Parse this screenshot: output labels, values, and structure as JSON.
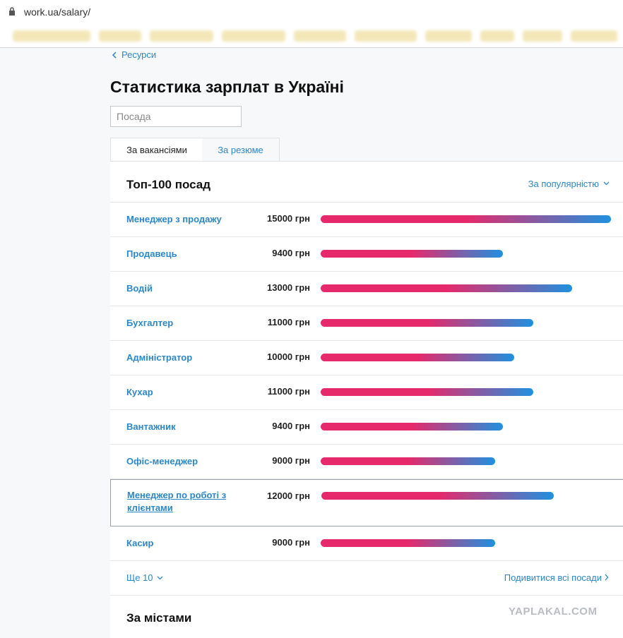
{
  "browser": {
    "url": "work.ua/salary/"
  },
  "breadcrumb": "Ресурси",
  "title": "Статистика зарплат в Україні",
  "search_placeholder": "Посада",
  "tabs": [
    "За вакансіями",
    "За резюме"
  ],
  "top": {
    "title": "Топ-100 посад",
    "sort": "За популярністю",
    "rows": [
      {
        "title": "Менеджер з продажу",
        "salary": 15000,
        "salary_label": "15000 грн"
      },
      {
        "title": "Продавець",
        "salary": 9400,
        "salary_label": "9400 грн"
      },
      {
        "title": "Водій",
        "salary": 13000,
        "salary_label": "13000 грн"
      },
      {
        "title": "Бухгалтер",
        "salary": 11000,
        "salary_label": "11000 грн"
      },
      {
        "title": "Адміністратор",
        "salary": 10000,
        "salary_label": "10000 грн"
      },
      {
        "title": "Кухар",
        "salary": 11000,
        "salary_label": "11000 грн"
      },
      {
        "title": "Вантажник",
        "salary": 9400,
        "salary_label": "9400 грн"
      },
      {
        "title": "Офіс-менеджер",
        "salary": 9000,
        "salary_label": "9000 грн"
      },
      {
        "title": "Менеджер по роботі з клієнтами",
        "salary": 12000,
        "salary_label": "12000 грн"
      },
      {
        "title": "Касир",
        "salary": 9000,
        "salary_label": "9000 грн"
      }
    ],
    "more": "Ще 10",
    "all_link": "Подивитися всі посади"
  },
  "cities_title": "За містами",
  "watermark": "YAPLAKAL.COM"
}
